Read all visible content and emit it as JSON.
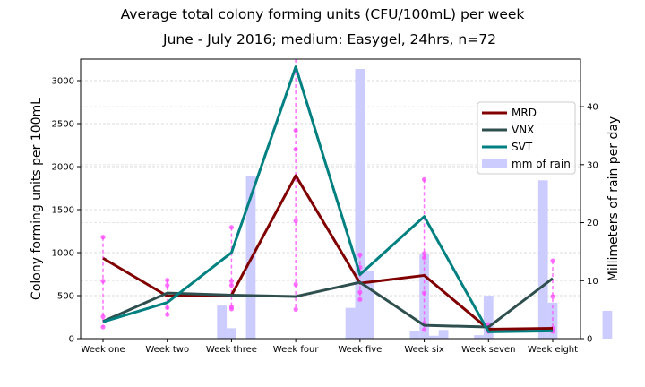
{
  "chart_data": {
    "type": "line",
    "title": "Average total colony forming units (CFU/100mL) per week",
    "subtitle": "June - July 2016; medium: Easygel, 24hrs, n=72",
    "ylabel": "Colony forming units per 100mL",
    "ylabel_right": "Millimeters of rain per day",
    "categories": [
      "Week one",
      "Week two",
      "Week three",
      "Week four",
      "Week five",
      "Week six",
      "Week seven",
      "Week eight"
    ],
    "ylim": [
      0,
      3250
    ],
    "yticks": [
      "0",
      "500",
      "1000",
      "1500",
      "2000",
      "2500",
      "3000"
    ],
    "ylim_right": [
      0,
      48.2
    ],
    "yticks_right": [
      "0",
      "10",
      "20",
      "30",
      "40"
    ],
    "grid": true,
    "legend_position": "upper right",
    "series": [
      {
        "name": "MRD",
        "color": "#800000",
        "values": [
          935,
          495,
          505,
          1895,
          645,
          735,
          110,
          120
        ]
      },
      {
        "name": "VNX",
        "color": "#2f4f4f",
        "values": [
          200,
          530,
          505,
          490,
          655,
          155,
          135,
          700
        ]
      },
      {
        "name": "SVT",
        "color": "#008080",
        "values": [
          195,
          420,
          1000,
          3160,
          745,
          1420,
          80,
          90
        ]
      }
    ],
    "rain": {
      "name": "mm of rain",
      "color": "#ccccff",
      "x": [
        1.85,
        2.0,
        2.3,
        3.85,
        4.0,
        4.15,
        4.85,
        5.0,
        5.15,
        5.3,
        5.85,
        6.0,
        6.85,
        7.0,
        7.85
      ],
      "values": [
        5.7,
        1.8,
        28.0,
        5.3,
        46.5,
        11.6,
        1.3,
        14.7,
        0.5,
        1.5,
        0.6,
        7.4,
        27.3,
        6.2,
        4.8
      ]
    },
    "samples": {
      "color": "#ff44ff",
      "points": [
        {
          "x": 0,
          "values": [
            1180,
            670,
            255,
            135
          ]
        },
        {
          "x": 1,
          "values": [
            680,
            620,
            360,
            280
          ]
        },
        {
          "x": 2,
          "values": [
            1295,
            670,
            620,
            370,
            345
          ]
        },
        {
          "x": 3,
          "values": [
            2420,
            2200,
            1370,
            630,
            340
          ]
        },
        {
          "x": 4,
          "values": [
            975,
            830,
            540,
            455
          ]
        },
        {
          "x": 5,
          "values": [
            1850,
            990,
            940,
            530,
            180,
            105
          ]
        },
        {
          "x": 6,
          "values": [
            165,
            135,
            85
          ]
        },
        {
          "x": 7,
          "values": [
            905,
            490,
            120,
            85
          ]
        }
      ]
    }
  }
}
